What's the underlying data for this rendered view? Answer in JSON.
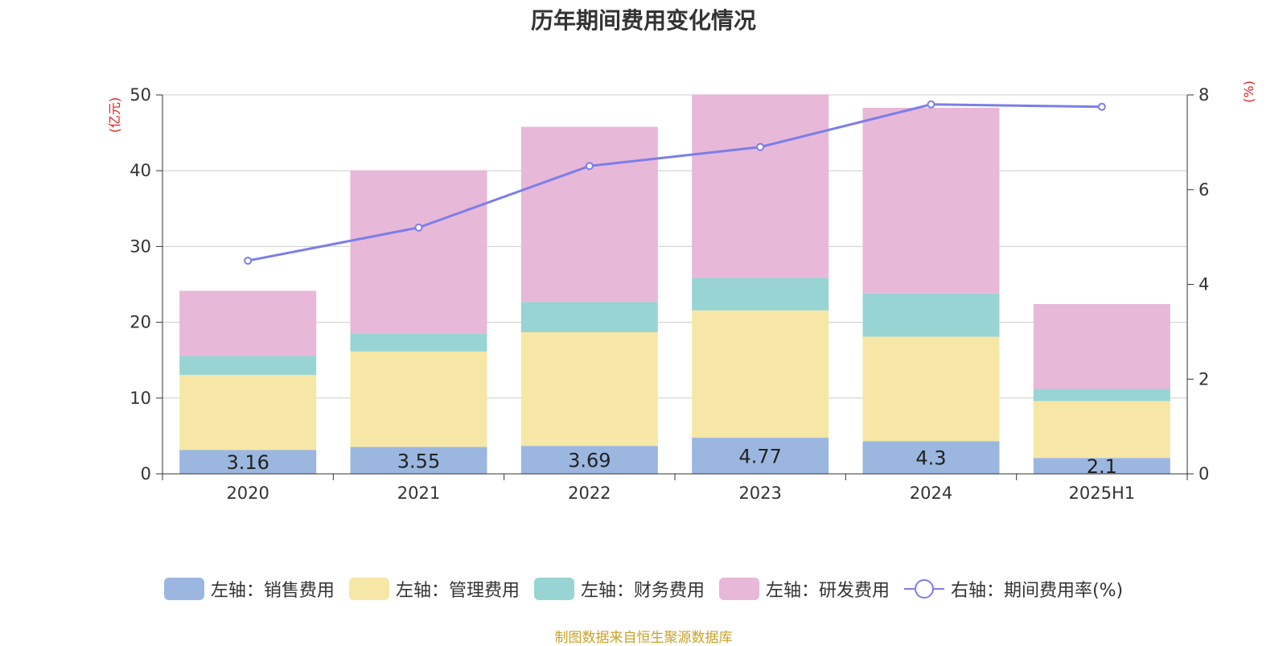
{
  "chart_data": {
    "type": "bar",
    "title": "历年期间费用变化情况",
    "categories": [
      "2020",
      "2021",
      "2022",
      "2023",
      "2024",
      "2025H1"
    ],
    "ylabel_left": "(亿元)",
    "ylabel_right": "(%)",
    "ylim_left": [
      0,
      50
    ],
    "yticks_left": [
      0,
      10,
      20,
      30,
      40,
      50
    ],
    "ylim_right": [
      0,
      8
    ],
    "yticks_right": [
      0,
      2,
      4,
      6,
      8
    ],
    "stacked": true,
    "grid": true,
    "legend_position": "bottom",
    "series": [
      {
        "name": "左轴：销售费用",
        "type": "bar",
        "axis": "left",
        "color": "#9bb7e0",
        "values": [
          3.16,
          3.55,
          3.69,
          4.77,
          4.3,
          2.1
        ],
        "show_labels": true
      },
      {
        "name": "左轴：管理费用",
        "type": "bar",
        "axis": "left",
        "color": "#f7e7a6",
        "values": [
          9.9,
          12.6,
          15.0,
          16.8,
          13.8,
          7.5
        ]
      },
      {
        "name": "左轴：财务费用",
        "type": "bar",
        "axis": "left",
        "color": "#98d4d4",
        "values": [
          2.5,
          2.4,
          4.0,
          4.3,
          5.7,
          1.6
        ]
      },
      {
        "name": "左轴：研发费用",
        "type": "bar",
        "axis": "left",
        "color": "#e7b8d8",
        "values": [
          8.6,
          21.5,
          23.1,
          24.2,
          24.5,
          11.2
        ]
      },
      {
        "name": "右轴：期间费用率(%)",
        "type": "line",
        "axis": "right",
        "color": "#7b7ee8",
        "values": [
          4.5,
          5.2,
          6.5,
          6.9,
          7.8,
          7.75
        ]
      }
    ]
  },
  "source_note": "制图数据来自恒生聚源数据库"
}
